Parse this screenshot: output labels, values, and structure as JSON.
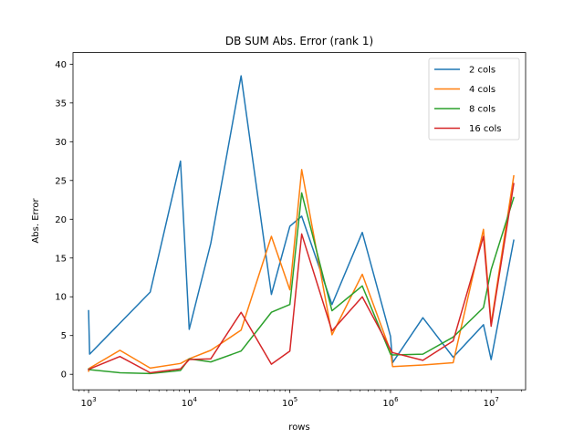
{
  "chart_data": {
    "type": "line",
    "title": "DB SUM Abs. Error (rank 1)",
    "xlabel": "rows",
    "ylabel": "Abs. Error",
    "xscale": "log",
    "xlim": [
      700,
      22000000
    ],
    "ylim": [
      -2,
      41.5
    ],
    "grid": false,
    "legend_position": "top-right",
    "x_ticks": [
      {
        "value": 1000,
        "base": "10",
        "exp": "3"
      },
      {
        "value": 10000,
        "base": "10",
        "exp": "4"
      },
      {
        "value": 100000,
        "base": "10",
        "exp": "5"
      },
      {
        "value": 1000000,
        "base": "10",
        "exp": "6"
      },
      {
        "value": 10000000,
        "base": "10",
        "exp": "7"
      }
    ],
    "y_ticks": [
      {
        "value": 0,
        "label": "0"
      },
      {
        "value": 5,
        "label": "5"
      },
      {
        "value": 10,
        "label": "10"
      },
      {
        "value": 15,
        "label": "15"
      },
      {
        "value": 20,
        "label": "20"
      },
      {
        "value": 25,
        "label": "25"
      },
      {
        "value": 30,
        "label": "30"
      },
      {
        "value": 35,
        "label": "35"
      },
      {
        "value": 40,
        "label": "40"
      }
    ],
    "x": [
      1000,
      1024,
      2048,
      4096,
      8192,
      10000,
      16384,
      32768,
      65536,
      100000,
      131072,
      262144,
      524288,
      1000000,
      1048576,
      2097152,
      4194304,
      8388608,
      10000000,
      16777216
    ],
    "series": [
      {
        "name": "2 cols",
        "color": "#1f77b4",
        "values": [
          8.2,
          2.6,
          6.6,
          10.6,
          27.5,
          5.8,
          16.9,
          38.5,
          10.3,
          19.1,
          20.4,
          9.0,
          18.3,
          4.9,
          1.5,
          7.3,
          2.2,
          6.4,
          1.9,
          17.3
        ]
      },
      {
        "name": "4 cols",
        "color": "#ff7f0e",
        "values": [
          0.4,
          0.8,
          3.1,
          0.8,
          1.4,
          2.0,
          3.1,
          5.7,
          17.8,
          10.9,
          26.4,
          5.1,
          12.9,
          3.0,
          1.0,
          1.2,
          1.5,
          18.7,
          6.5,
          25.6
        ]
      },
      {
        "name": "8 cols",
        "color": "#2ca02c",
        "values": [
          0.7,
          0.6,
          0.2,
          0.1,
          0.5,
          2.0,
          1.6,
          3.0,
          8.0,
          9.0,
          23.4,
          8.2,
          11.4,
          2.6,
          2.5,
          2.6,
          4.8,
          8.6,
          13.5,
          22.8
        ]
      },
      {
        "name": "16 cols",
        "color": "#d62728",
        "values": [
          0.6,
          0.7,
          2.3,
          0.2,
          0.7,
          1.9,
          2.0,
          8.0,
          1.3,
          3.0,
          18.1,
          5.6,
          10.0,
          3.2,
          2.8,
          1.8,
          4.3,
          17.8,
          6.2,
          24.6
        ]
      }
    ]
  }
}
